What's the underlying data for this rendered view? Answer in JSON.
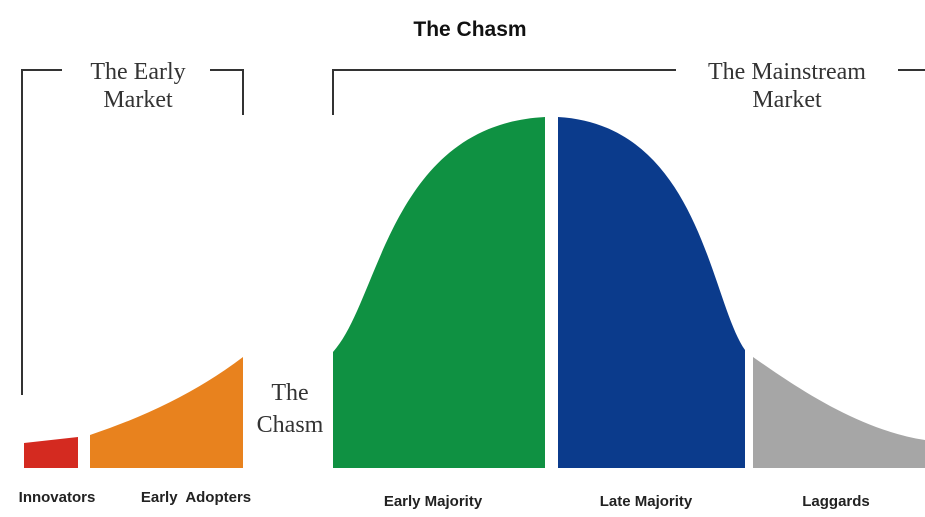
{
  "title": "The Chasm",
  "brackets": [
    {
      "lines": [
        "The Early",
        "Market"
      ]
    },
    {
      "lines": [
        "The Mainstream",
        "Market"
      ]
    }
  ],
  "gap_label": {
    "lines": [
      "The",
      "Chasm"
    ]
  },
  "segments": [
    {
      "label": "Innovators"
    },
    {
      "label": "Early  Adopters"
    },
    {
      "label": "Early Majority"
    },
    {
      "label": "Late Majority"
    },
    {
      "label": "Laggards"
    }
  ]
}
